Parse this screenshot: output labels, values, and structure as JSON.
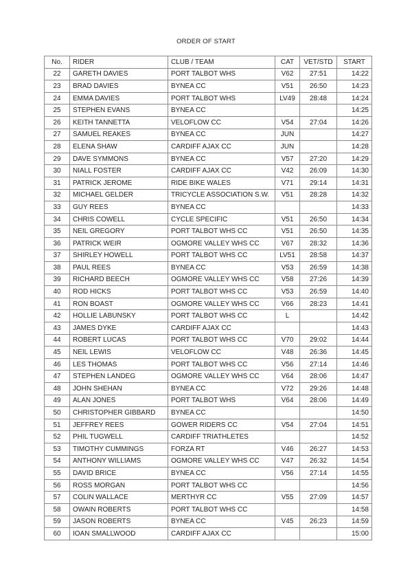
{
  "title": "ORDER OF START",
  "headers": {
    "no": "No.",
    "rider": "RIDER",
    "club": "CLUB / TEAM",
    "cat": "CAT",
    "vet": "VET/STD",
    "start": "START"
  },
  "rows": [
    [
      "22",
      "GARETH DAVIES",
      "PORT TALBOT WHS",
      "V62",
      "27:51",
      "14:22"
    ],
    [
      "23",
      "BRAD DAVIES",
      "BYNEA CC",
      "V51",
      "26:50",
      "14:23"
    ],
    [
      "24",
      "EMMA DAVIES",
      "PORT TALBOT WHS",
      "LV49",
      "28:48",
      "14:24"
    ],
    [
      "25",
      "STEPHEN EVANS",
      "BYNEA CC",
      "",
      "",
      "14:25"
    ],
    [
      "26",
      "KEITH TANNETTA",
      "VELOFLOW CC",
      "V54",
      "27:04",
      "14:26"
    ],
    [
      "27",
      "SAMUEL REAKES",
      "BYNEA CC",
      "JUN",
      "",
      "14:27"
    ],
    [
      "28",
      "ELENA SHAW",
      "CARDIFF AJAX CC",
      "JUN",
      "",
      "14:28"
    ],
    [
      "29",
      "DAVE SYMMONS",
      "BYNEA CC",
      "V57",
      "27:20",
      "14:29"
    ],
    [
      "30",
      "NIALL FOSTER",
      "CARDIFF AJAX CC",
      "V42",
      "26:09",
      "14:30"
    ],
    [
      "31",
      "PATRICK JEROME",
      "RIDE BIKE WALES",
      "V71",
      "29:14",
      "14:31"
    ],
    [
      "32",
      "MICHAEL GELDER",
      "TRICYCLE ASSOCIATION S.W.",
      "V51",
      "28:28",
      "14:32"
    ],
    [
      "33",
      "GUY REES",
      "BYNEA CC",
      "",
      "",
      "14:33"
    ],
    [
      "34",
      "CHRIS COWELL",
      "CYCLE SPECIFIC",
      "V51",
      "26:50",
      "14:34"
    ],
    [
      "35",
      "NEIL GREGORY",
      "PORT TALBOT WHS CC",
      "V51",
      "26:50",
      "14:35"
    ],
    [
      "36",
      "PATRICK WEIR",
      "OGMORE VALLEY WHS CC",
      "V67",
      "28:32",
      "14:36"
    ],
    [
      "37",
      "SHIRLEY HOWELL",
      "PORT TALBOT WHS CC",
      "LV51",
      "28:58",
      "14:37"
    ],
    [
      "38",
      "PAUL REES",
      "BYNEA CC",
      "V53",
      "26:59",
      "14:38"
    ],
    [
      "39",
      "RICHARD BEECH",
      "OGMORE VALLEY WHS CC",
      "V58",
      "27:26",
      "14:39"
    ],
    [
      "40",
      "ROD HICKS",
      "PORT TALBOT WHS CC",
      "V53",
      "26:59",
      "14:40"
    ],
    [
      "41",
      "RON BOAST",
      "OGMORE VALLEY WHS CC",
      "V66",
      "28:23",
      "14:41"
    ],
    [
      "42",
      "HOLLIE LABUNSKY",
      "PORT TALBOT WHS CC",
      "L",
      "",
      "14:42"
    ],
    [
      "43",
      "JAMES DYKE",
      "CARDIFF AJAX CC",
      "",
      "",
      "14:43"
    ],
    [
      "44",
      "ROBERT LUCAS",
      "PORT TALBOT WHS CC",
      "V70",
      "29:02",
      "14:44"
    ],
    [
      "45",
      "NEIL LEWIS",
      "VELOFLOW CC",
      "V48",
      "26:36",
      "14:45"
    ],
    [
      "46",
      "LES THOMAS",
      "PORT TALBOT WHS CC",
      "V56",
      "27:14",
      "14:46"
    ],
    [
      "47",
      "STEPHEN LANDEG",
      "OGMORE VALLEY WHS CC",
      "V64",
      "28:06",
      "14:47"
    ],
    [
      "48",
      "JOHN SHEHAN",
      "BYNEA CC",
      "V72",
      "29:26",
      "14:48"
    ],
    [
      "49",
      "ALAN JONES",
      "PORT TALBOT WHS",
      "V64",
      "28:06",
      "14:49"
    ],
    [
      "50",
      "CHRISTOPHER GIBBARD",
      "BYNEA CC",
      "",
      "",
      "14:50"
    ],
    [
      "51",
      "JEFFREY REES",
      "GOWER RIDERS CC",
      "V54",
      "27:04",
      "14:51"
    ],
    [
      "52",
      "PHIL TUGWELL",
      "CARDIFF TRIATHLETES",
      "",
      "",
      "14:52"
    ],
    [
      "53",
      "TIMOTHY CUMMINGS",
      "FORZA RT",
      "V46",
      "26:27",
      "14:53"
    ],
    [
      "54",
      "ANTHONY WILLIAMS",
      "OGMORE VALLEY WHS CC",
      "V47",
      "26:32",
      "14:54"
    ],
    [
      "55",
      "DAVID BRICE",
      "BYNEA CC",
      "V56",
      "27:14",
      "14:55"
    ],
    [
      "56",
      "ROSS MORGAN",
      "PORT TALBOT WHS CC",
      "",
      "",
      "14:56"
    ],
    [
      "57",
      "COLIN WALLACE",
      "MERTHYR CC",
      "V55",
      "27:09",
      "14:57"
    ],
    [
      "58",
      "OWAIN ROBERTS",
      "PORT TALBOT WHS CC",
      "",
      "",
      "14:58"
    ],
    [
      "59",
      "JASON ROBERTS",
      "BYNEA CC",
      "V45",
      "26:23",
      "14:59"
    ],
    [
      "60",
      "IOAN SMALLWOOD",
      "CARDIFF AJAX CC",
      "",
      "",
      "15:00"
    ]
  ]
}
